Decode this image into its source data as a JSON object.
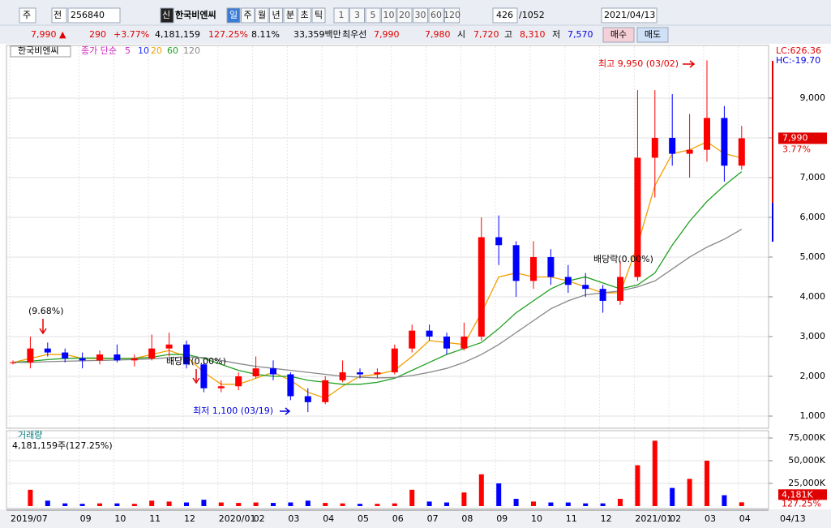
{
  "toolbar": {
    "market": "주",
    "prev": "전",
    "code": "256840",
    "credit": "신",
    "name": "한국비엔씨",
    "periods": [
      "일",
      "주",
      "월",
      "년",
      "분",
      "초",
      "틱"
    ],
    "intervals": [
      "1",
      "3",
      "5",
      "10",
      "20",
      "30",
      "60",
      "120"
    ],
    "count": "426",
    "total": "/1052",
    "date": "2021/04/13"
  },
  "quote": {
    "price": "7,990",
    "arrow": "▲",
    "change": "290",
    "rate": "+3.77%",
    "volume": "4,181,159",
    "volume_rate": "127.25%",
    "turnover": "8.11%",
    "amount": "33,359백만",
    "best_label": "최우선",
    "ask": "7,990",
    "bid": "7,980",
    "open_label": "시",
    "open": "7,720",
    "high_label": "고",
    "high": "8,310",
    "low_label": "저",
    "low": "7,570",
    "buy": "매수",
    "sell": "매도"
  },
  "chart_data": [
    {
      "type": "candlestick",
      "title": "한국비엔씨",
      "ma_label": "종가 단순",
      "ma_legend": [
        {
          "name": "5",
          "color": "#d020c0"
        },
        {
          "name": "10",
          "color": "#2030ff"
        }
      ],
      "up_color": "#ff0000",
      "down_color": "#0000ff",
      "categories": [
        "2019/07",
        null,
        null,
        null,
        "09",
        null,
        "10",
        null,
        "11",
        null,
        "12",
        null,
        "2020/01",
        null,
        "02",
        null,
        "03",
        null,
        "04",
        null,
        "05",
        null,
        "06",
        null,
        "07",
        null,
        "08",
        null,
        "09",
        null,
        "10",
        null,
        "11",
        null,
        "12",
        null,
        "2021/01",
        null,
        "02",
        null,
        "03",
        null,
        "04"
      ],
      "open": [
        2350,
        2350,
        2700,
        2600,
        2450,
        2400,
        2550,
        2400,
        2450,
        2700,
        2800,
        2300,
        1700,
        1750,
        2000,
        2200,
        2050,
        1500,
        1350,
        1900,
        2100,
        2050,
        2100,
        2700,
        3150,
        3000,
        2700,
        3000,
        5500,
        5300,
        4400,
        5000,
        4500,
        4300,
        4200,
        3900,
        4500,
        7500,
        8000,
        7600,
        7700,
        8500,
        7300
      ],
      "high": [
        2400,
        3000,
        2850,
        2700,
        2600,
        2650,
        2800,
        2550,
        3050,
        3100,
        2900,
        2400,
        1900,
        2100,
        2500,
        2400,
        2100,
        1700,
        2000,
        2400,
        2200,
        2200,
        2800,
        3300,
        3300,
        3100,
        3350,
        6000,
        6050,
        5400,
        5400,
        5200,
        4800,
        4600,
        4300,
        4900,
        9200,
        9200,
        9100,
        8600,
        9950,
        8800,
        8300
      ],
      "low": [
        2300,
        2200,
        2500,
        2350,
        2200,
        2300,
        2350,
        2250,
        2400,
        2500,
        2200,
        1600,
        1600,
        1650,
        1950,
        1900,
        1400,
        1100,
        1300,
        1850,
        1950,
        1950,
        2050,
        2600,
        2900,
        2550,
        2650,
        2900,
        4800,
        4000,
        4200,
        4300,
        4100,
        4000,
        3600,
        3800,
        4400,
        6500,
        7300,
        7000,
        7400,
        6900,
        7200
      ],
      "close": [
        2350,
        2700,
        2600,
        2450,
        2400,
        2550,
        2400,
        2450,
        2700,
        2800,
        2300,
        1700,
        1750,
        2000,
        2200,
        2050,
        1500,
        1350,
        1900,
        2100,
        2050,
        2100,
        2700,
        3150,
        3000,
        2700,
        3000,
        5500,
        5300,
        4400,
        5000,
        4500,
        4300,
        4200,
        3900,
        4500,
        7500,
        8000,
        7600,
        7700,
        8500,
        7300,
        7990
      ],
      "series": [
        {
          "name": "20",
          "color": "#f0a000",
          "values": [
            2350,
            2450,
            2550,
            2550,
            2450,
            2450,
            2450,
            2450,
            2550,
            2650,
            2500,
            2100,
            1800,
            1800,
            1950,
            2100,
            1900,
            1600,
            1450,
            1750,
            2000,
            2050,
            2150,
            2500,
            2900,
            2850,
            2800,
            3600,
            4500,
            4600,
            4500,
            4500,
            4400,
            4250,
            4100,
            4100,
            5300,
            6800,
            7600,
            7700,
            7900,
            7600,
            7500
          ]
        },
        {
          "name": "60",
          "color": "#20a020",
          "values": [
            2350,
            2380,
            2420,
            2450,
            2460,
            2460,
            2450,
            2450,
            2480,
            2550,
            2550,
            2450,
            2300,
            2150,
            2050,
            2000,
            2000,
            1900,
            1850,
            1800,
            1800,
            1850,
            1950,
            2150,
            2350,
            2550,
            2700,
            2850,
            3200,
            3600,
            3900,
            4200,
            4400,
            4500,
            4350,
            4200,
            4300,
            4600,
            5300,
            5900,
            6400,
            6800,
            7150
          ]
        },
        {
          "name": "120",
          "color": "#888888",
          "values": [
            2350,
            2350,
            2370,
            2380,
            2390,
            2400,
            2410,
            2420,
            2440,
            2470,
            2490,
            2470,
            2400,
            2320,
            2250,
            2200,
            2150,
            2100,
            2050,
            2000,
            1980,
            1960,
            1970,
            2020,
            2100,
            2200,
            2350,
            2550,
            2800,
            3100,
            3400,
            3700,
            3900,
            4050,
            4100,
            4150,
            4250,
            4400,
            4700,
            5000,
            5250,
            5450,
            5700
          ]
        }
      ],
      "ylim": [
        755,
        10040
      ],
      "yticks": [
        {
          "value": 1000,
          "label": "1,000"
        },
        {
          "value": 2000,
          "label": "2,000"
        },
        {
          "value": 3000,
          "label": "3,000"
        },
        {
          "value": 4000,
          "label": "4,000"
        },
        {
          "value": 5000,
          "label": "5,000"
        },
        {
          "value": 6000,
          "label": "6,000"
        },
        {
          "value": 7000,
          "label": "7,000"
        },
        {
          "value": 8000,
          "label": "8,000"
        },
        {
          "value": 9000,
          "label": "9,000"
        }
      ],
      "annotations": [
        "(9.68%)",
        "배당락(0.00%)",
        "배당락(0.00%)",
        "최저 1,100 (03/19)",
        "최고 9,950 (03/02)"
      ],
      "scale_info": [
        "LC:626.36",
        "HC:-19.70"
      ],
      "last_price": {
        "value": 7990,
        "label": "7,990"
      },
      "last_rate": "3.77%",
      "last_date": "04/13"
    },
    {
      "type": "bar",
      "title": "거래량",
      "subtitle": "4,181,159주(127.25%)",
      "values": [
        0,
        18000,
        6000,
        3000,
        2500,
        3000,
        3000,
        2500,
        6000,
        5000,
        4000,
        7000,
        4000,
        3500,
        4000,
        3500,
        4000,
        6000,
        3500,
        3000,
        2500,
        2500,
        3000,
        18000,
        5000,
        4000,
        15000,
        35000,
        25000,
        8000,
        5000,
        4000,
        4000,
        3000,
        3000,
        8000,
        45000,
        72000,
        20000,
        30000,
        50000,
        12000,
        4181
      ],
      "ylim": [
        0,
        79500
      ],
      "yticks": [
        {
          "value": 25000,
          "label": "25,000K"
        },
        {
          "value": 50000,
          "label": "50,000K"
        },
        {
          "value": 75000,
          "label": "75,000K"
        }
      ],
      "last_volume": {
        "value": 4181,
        "label": "4,181K"
      },
      "last_rate": "127.25%"
    }
  ]
}
